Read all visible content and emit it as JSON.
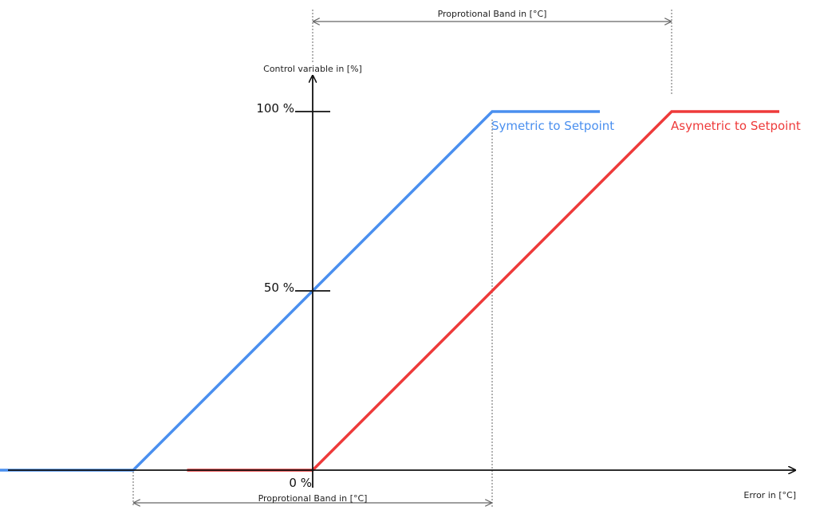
{
  "chart_data": {
    "type": "line",
    "xlabel": "Error in [°C]",
    "ylabel": "Control variable in [%]",
    "yticks": [
      "0 %",
      "50 %",
      "100 %"
    ],
    "ylim": [
      0,
      100
    ],
    "band_label_top": "Proprotional Band in [°C]",
    "band_label_bottom": "Proprotional Band in [°C]",
    "series": [
      {
        "name": "Symetric to Setpoint",
        "color": "#4a8fef",
        "points": [
          [
            -1.0,
            0
          ],
          [
            -0.5,
            0
          ],
          [
            0.5,
            100
          ],
          [
            0.8,
            100
          ]
        ]
      },
      {
        "name": "Asymetric to Setpoint",
        "color": "#ee3a3a",
        "points": [
          [
            -0.35,
            0
          ],
          [
            0.0,
            0
          ],
          [
            1.0,
            100
          ],
          [
            1.3,
            100
          ]
        ]
      }
    ],
    "axis_color": "#111111",
    "guide_color": "#666666"
  }
}
